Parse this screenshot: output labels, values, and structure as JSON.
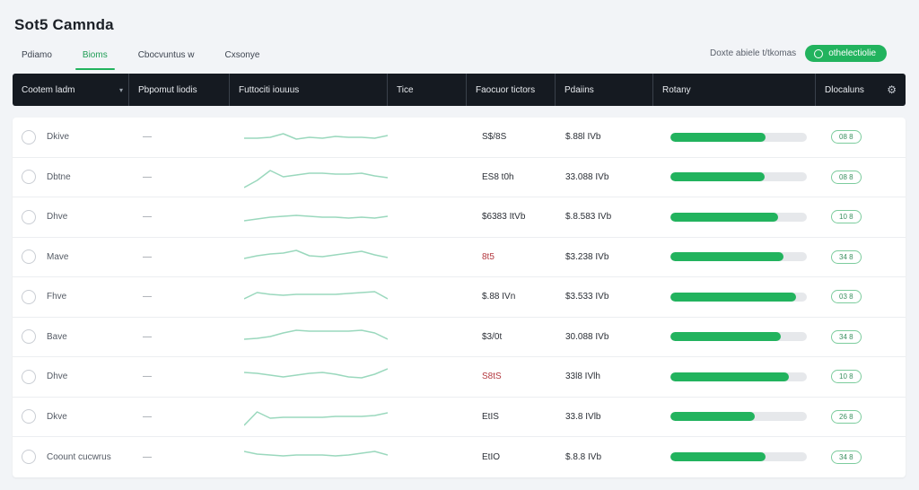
{
  "app": {
    "title": "Sot5 Camnda"
  },
  "tabs": [
    {
      "label": "Pdiamo",
      "active": false
    },
    {
      "label": "Bioms",
      "active": true
    },
    {
      "label": "Cbocvuntus w",
      "active": false
    },
    {
      "label": "Cxsonye",
      "active": false
    }
  ],
  "top_right": {
    "link_label": "Doxte abiele t/tkomas",
    "button_label": "othelectiolie"
  },
  "columns": [
    {
      "label": "Cootem ladm"
    },
    {
      "label": "Pbpomut liodis"
    },
    {
      "label": "Futtociti iouuus"
    },
    {
      "label": "Tice"
    },
    {
      "label": "Faocuor tictors"
    },
    {
      "label": "Pdaiins"
    },
    {
      "label": "Rotany"
    },
    {
      "label": "Dlocaluns"
    }
  ],
  "colors": {
    "accent": "#22b35e",
    "header_bg": "#151a21",
    "spark": "#9ad8bd",
    "negative": "#b3383f"
  },
  "rows": [
    {
      "name": "Dkive",
      "dash": "—",
      "val1": "S$/8S",
      "val1_neg": false,
      "val2": "$.88l IVb",
      "progress": 0.7,
      "pill": "08 8",
      "spark": [
        13,
        13,
        12,
        8,
        14,
        12,
        13,
        11,
        12,
        12,
        13,
        10
      ]
    },
    {
      "name": "Dbtne",
      "dash": "—",
      "val1": "ES8 t0h",
      "val1_neg": false,
      "val2": "33.088 IVb",
      "progress": 0.69,
      "pill": "08 8",
      "spark": [
        24,
        16,
        5,
        12,
        10,
        8,
        8,
        9,
        9,
        8,
        11,
        13
      ]
    },
    {
      "name": "Dhve",
      "dash": "—",
      "val1": "$6383 ItVb",
      "val1_neg": false,
      "val2": "$.8.583 IVb",
      "progress": 0.79,
      "pill": "10 8",
      "spark": [
        16,
        14,
        12,
        11,
        10,
        11,
        12,
        12,
        13,
        12,
        13,
        11
      ]
    },
    {
      "name": "Mave",
      "dash": "—",
      "val1": "8t5",
      "val1_neg": true,
      "val2": "$3.238 IVb",
      "progress": 0.83,
      "pill": "34 8",
      "spark": [
        14,
        11,
        9,
        8,
        5,
        11,
        12,
        10,
        8,
        6,
        10,
        13
      ]
    },
    {
      "name": "Fhve",
      "dash": "—",
      "val1": "$.88 IVn",
      "val1_neg": false,
      "val2": "$3.533 IVb",
      "progress": 0.92,
      "pill": "03 8",
      "spark": [
        14,
        7,
        9,
        10,
        9,
        9,
        9,
        9,
        8,
        7,
        6,
        14
      ]
    },
    {
      "name": "Bave",
      "dash": "—",
      "val1": "$3/0t",
      "val1_neg": false,
      "val2": "30.088 IVb",
      "progress": 0.81,
      "pill": "34 8",
      "spark": [
        15,
        14,
        12,
        8,
        5,
        6,
        6,
        6,
        6,
        5,
        8,
        15
      ]
    },
    {
      "name": "Dhve",
      "dash": "—",
      "val1": "S8tS",
      "val1_neg": true,
      "val2": "33l8 IVlh",
      "progress": 0.87,
      "pill": "10 8",
      "spark": [
        7,
        8,
        10,
        12,
        10,
        8,
        7,
        9,
        12,
        13,
        9,
        3
      ]
    },
    {
      "name": "Dkve",
      "dash": "—",
      "val1": "EtIS",
      "val1_neg": false,
      "val2": "33.8 IVlb",
      "progress": 0.62,
      "pill": "26 8",
      "spark": [
        22,
        7,
        14,
        13,
        13,
        13,
        13,
        12,
        12,
        12,
        11,
        8
      ]
    },
    {
      "name": "Coount cucwrus",
      "dash": "—",
      "val1": "EtIO",
      "val1_neg": false,
      "val2": "$.8.8 IVb",
      "progress": 0.7,
      "pill": "34 8",
      "spark": [
        6,
        9,
        10,
        11,
        10,
        10,
        10,
        11,
        10,
        8,
        6,
        10
      ]
    }
  ]
}
